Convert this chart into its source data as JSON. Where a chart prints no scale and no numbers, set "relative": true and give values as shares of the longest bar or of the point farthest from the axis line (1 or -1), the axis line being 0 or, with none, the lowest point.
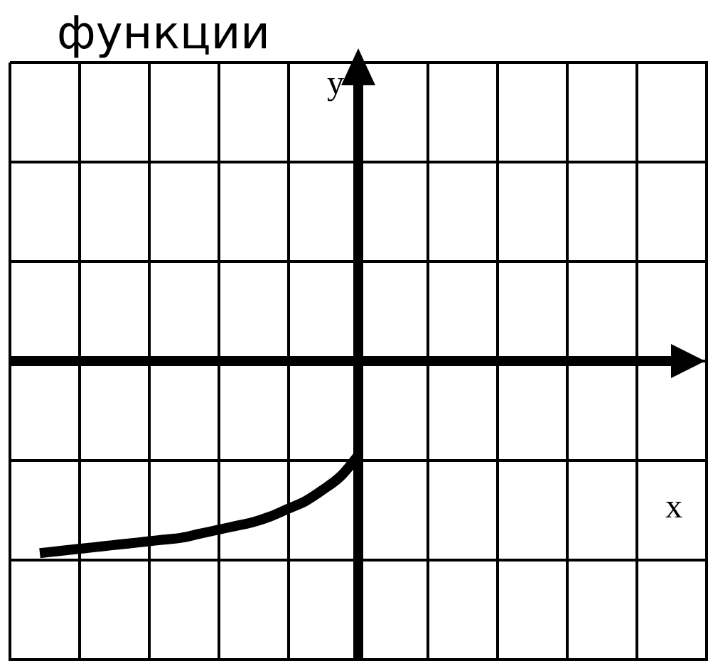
{
  "chart_data": {
    "type": "line",
    "title": "функции",
    "annotations": [
      "y",
      "x"
    ],
    "relative": true,
    "grid": true,
    "marker": "none",
    "line_style": "solid",
    "categories": [
      null,
      null,
      null,
      null,
      null,
      null,
      null,
      null,
      null,
      null,
      null,
      null,
      null,
      null,
      null,
      null,
      null,
      null,
      null
    ],
    "series": [
      {
        "color": "#000000",
        "values": [
          -1,
          -0.99,
          -0.98,
          -0.97,
          -0.96,
          -0.95,
          -0.94,
          -0.93,
          -0.92,
          -0.9,
          -0.88,
          -0.86,
          -0.84,
          -0.81,
          -0.77,
          -0.73,
          -0.67,
          -0.6,
          -0.49
        ]
      }
    ]
  }
}
